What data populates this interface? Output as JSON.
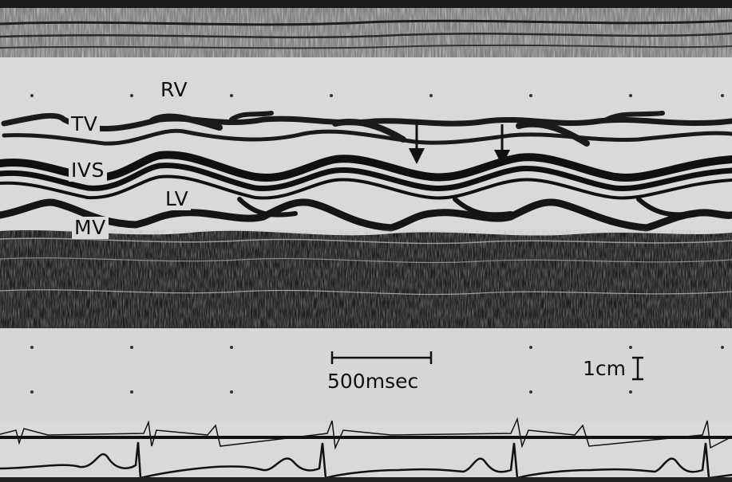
{
  "labels": {
    "rv": "RV",
    "tv": "TV",
    "ivs": "IVS",
    "lv": "LV",
    "mv": "MV"
  },
  "scale": {
    "time": "500msec",
    "depth": "1cm"
  },
  "colors": {
    "background": "#d9d9d9",
    "echo_dark": "#141414",
    "echo_mid": "#6e6e6e"
  },
  "icons": [
    "arrow-down-icon",
    "arrow-down-icon"
  ]
}
